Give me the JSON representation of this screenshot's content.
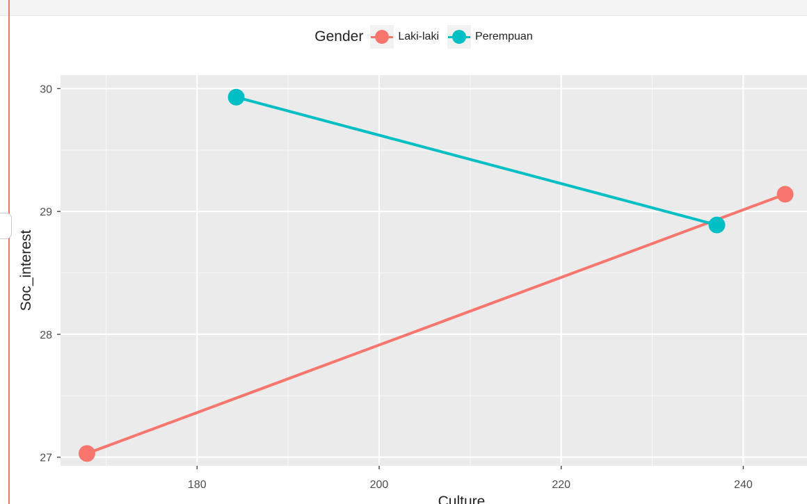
{
  "chart_data": {
    "type": "line",
    "xlabel": "Culture",
    "ylabel": "Soc_interest",
    "xlim": [
      165,
      247
    ],
    "ylim": [
      26.93,
      30.11
    ],
    "x_ticks": [
      180,
      200,
      220,
      240
    ],
    "y_ticks": [
      27,
      28,
      29,
      30
    ],
    "x_tick_labels": [
      "180",
      "200",
      "220",
      "240"
    ],
    "y_tick_labels": [
      "27",
      "28",
      "29",
      "30"
    ],
    "grid": true,
    "legend": {
      "title": "Gender",
      "position": "top"
    },
    "series": [
      {
        "name": "Laki-laki",
        "color": "#f8766d",
        "points": [
          {
            "x": 167.9,
            "y": 27.03
          },
          {
            "x": 244.6,
            "y": 29.14
          }
        ]
      },
      {
        "name": "Perempuan",
        "color": "#00bfc4",
        "points": [
          {
            "x": 184.3,
            "y": 29.93
          },
          {
            "x": 237.1,
            "y": 28.89
          }
        ]
      }
    ]
  }
}
